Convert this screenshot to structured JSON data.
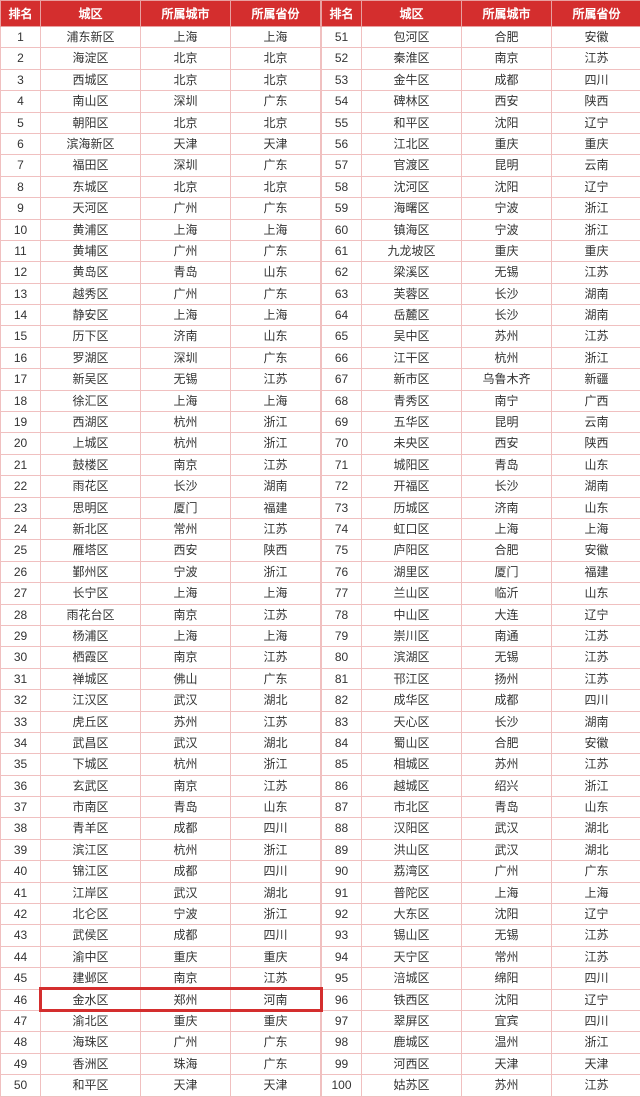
{
  "colors": {
    "header_bg": "#d42e2e",
    "header_text": "#ffffff",
    "border": "#f0c0c0",
    "highlight_border": "#d42e2e",
    "cell_text": "#333333"
  },
  "headers": {
    "rank": "排名",
    "district": "城区",
    "city": "所属城市",
    "province": "所属省份"
  },
  "highlight_row_index": 45,
  "rows_left": [
    {
      "rank": "1",
      "district": "浦东新区",
      "city": "上海",
      "province": "上海"
    },
    {
      "rank": "2",
      "district": "海淀区",
      "city": "北京",
      "province": "北京"
    },
    {
      "rank": "3",
      "district": "西城区",
      "city": "北京",
      "province": "北京"
    },
    {
      "rank": "4",
      "district": "南山区",
      "city": "深圳",
      "province": "广东"
    },
    {
      "rank": "5",
      "district": "朝阳区",
      "city": "北京",
      "province": "北京"
    },
    {
      "rank": "6",
      "district": "滨海新区",
      "city": "天津",
      "province": "天津"
    },
    {
      "rank": "7",
      "district": "福田区",
      "city": "深圳",
      "province": "广东"
    },
    {
      "rank": "8",
      "district": "东城区",
      "city": "北京",
      "province": "北京"
    },
    {
      "rank": "9",
      "district": "天河区",
      "city": "广州",
      "province": "广东"
    },
    {
      "rank": "10",
      "district": "黄浦区",
      "city": "上海",
      "province": "上海"
    },
    {
      "rank": "11",
      "district": "黄埔区",
      "city": "广州",
      "province": "广东"
    },
    {
      "rank": "12",
      "district": "黄岛区",
      "city": "青岛",
      "province": "山东"
    },
    {
      "rank": "13",
      "district": "越秀区",
      "city": "广州",
      "province": "广东"
    },
    {
      "rank": "14",
      "district": "静安区",
      "city": "上海",
      "province": "上海"
    },
    {
      "rank": "15",
      "district": "历下区",
      "city": "济南",
      "province": "山东"
    },
    {
      "rank": "16",
      "district": "罗湖区",
      "city": "深圳",
      "province": "广东"
    },
    {
      "rank": "17",
      "district": "新吴区",
      "city": "无锡",
      "province": "江苏"
    },
    {
      "rank": "18",
      "district": "徐汇区",
      "city": "上海",
      "province": "上海"
    },
    {
      "rank": "19",
      "district": "西湖区",
      "city": "杭州",
      "province": "浙江"
    },
    {
      "rank": "20",
      "district": "上城区",
      "city": "杭州",
      "province": "浙江"
    },
    {
      "rank": "21",
      "district": "鼓楼区",
      "city": "南京",
      "province": "江苏"
    },
    {
      "rank": "22",
      "district": "雨花区",
      "city": "长沙",
      "province": "湖南"
    },
    {
      "rank": "23",
      "district": "思明区",
      "city": "厦门",
      "province": "福建"
    },
    {
      "rank": "24",
      "district": "新北区",
      "city": "常州",
      "province": "江苏"
    },
    {
      "rank": "25",
      "district": "雁塔区",
      "city": "西安",
      "province": "陕西"
    },
    {
      "rank": "26",
      "district": "鄞州区",
      "city": "宁波",
      "province": "浙江"
    },
    {
      "rank": "27",
      "district": "长宁区",
      "city": "上海",
      "province": "上海"
    },
    {
      "rank": "28",
      "district": "雨花台区",
      "city": "南京",
      "province": "江苏"
    },
    {
      "rank": "29",
      "district": "杨浦区",
      "city": "上海",
      "province": "上海"
    },
    {
      "rank": "30",
      "district": "栖霞区",
      "city": "南京",
      "province": "江苏"
    },
    {
      "rank": "31",
      "district": "禅城区",
      "city": "佛山",
      "province": "广东"
    },
    {
      "rank": "32",
      "district": "江汉区",
      "city": "武汉",
      "province": "湖北"
    },
    {
      "rank": "33",
      "district": "虎丘区",
      "city": "苏州",
      "province": "江苏"
    },
    {
      "rank": "34",
      "district": "武昌区",
      "city": "武汉",
      "province": "湖北"
    },
    {
      "rank": "35",
      "district": "下城区",
      "city": "杭州",
      "province": "浙江"
    },
    {
      "rank": "36",
      "district": "玄武区",
      "city": "南京",
      "province": "江苏"
    },
    {
      "rank": "37",
      "district": "市南区",
      "city": "青岛",
      "province": "山东"
    },
    {
      "rank": "38",
      "district": "青羊区",
      "city": "成都",
      "province": "四川"
    },
    {
      "rank": "39",
      "district": "滨江区",
      "city": "杭州",
      "province": "浙江"
    },
    {
      "rank": "40",
      "district": "锦江区",
      "city": "成都",
      "province": "四川"
    },
    {
      "rank": "41",
      "district": "江岸区",
      "city": "武汉",
      "province": "湖北"
    },
    {
      "rank": "42",
      "district": "北仑区",
      "city": "宁波",
      "province": "浙江"
    },
    {
      "rank": "43",
      "district": "武侯区",
      "city": "成都",
      "province": "四川"
    },
    {
      "rank": "44",
      "district": "渝中区",
      "city": "重庆",
      "province": "重庆"
    },
    {
      "rank": "45",
      "district": "建邺区",
      "city": "南京",
      "province": "江苏"
    },
    {
      "rank": "46",
      "district": "金水区",
      "city": "郑州",
      "province": "河南"
    },
    {
      "rank": "47",
      "district": "渝北区",
      "city": "重庆",
      "province": "重庆"
    },
    {
      "rank": "48",
      "district": "海珠区",
      "city": "广州",
      "province": "广东"
    },
    {
      "rank": "49",
      "district": "香洲区",
      "city": "珠海",
      "province": "广东"
    },
    {
      "rank": "50",
      "district": "和平区",
      "city": "天津",
      "province": "天津"
    }
  ],
  "rows_right": [
    {
      "rank": "51",
      "district": "包河区",
      "city": "合肥",
      "province": "安徽"
    },
    {
      "rank": "52",
      "district": "秦淮区",
      "city": "南京",
      "province": "江苏"
    },
    {
      "rank": "53",
      "district": "金牛区",
      "city": "成都",
      "province": "四川"
    },
    {
      "rank": "54",
      "district": "碑林区",
      "city": "西安",
      "province": "陕西"
    },
    {
      "rank": "55",
      "district": "和平区",
      "city": "沈阳",
      "province": "辽宁"
    },
    {
      "rank": "56",
      "district": "江北区",
      "city": "重庆",
      "province": "重庆"
    },
    {
      "rank": "57",
      "district": "官渡区",
      "city": "昆明",
      "province": "云南"
    },
    {
      "rank": "58",
      "district": "沈河区",
      "city": "沈阳",
      "province": "辽宁"
    },
    {
      "rank": "59",
      "district": "海曙区",
      "city": "宁波",
      "province": "浙江"
    },
    {
      "rank": "60",
      "district": "镇海区",
      "city": "宁波",
      "province": "浙江"
    },
    {
      "rank": "61",
      "district": "九龙坡区",
      "city": "重庆",
      "province": "重庆"
    },
    {
      "rank": "62",
      "district": "梁溪区",
      "city": "无锡",
      "province": "江苏"
    },
    {
      "rank": "63",
      "district": "芙蓉区",
      "city": "长沙",
      "province": "湖南"
    },
    {
      "rank": "64",
      "district": "岳麓区",
      "city": "长沙",
      "province": "湖南"
    },
    {
      "rank": "65",
      "district": "吴中区",
      "city": "苏州",
      "province": "江苏"
    },
    {
      "rank": "66",
      "district": "江干区",
      "city": "杭州",
      "province": "浙江"
    },
    {
      "rank": "67",
      "district": "新市区",
      "city": "乌鲁木齐",
      "province": "新疆"
    },
    {
      "rank": "68",
      "district": "青秀区",
      "city": "南宁",
      "province": "广西"
    },
    {
      "rank": "69",
      "district": "五华区",
      "city": "昆明",
      "province": "云南"
    },
    {
      "rank": "70",
      "district": "未央区",
      "city": "西安",
      "province": "陕西"
    },
    {
      "rank": "71",
      "district": "城阳区",
      "city": "青岛",
      "province": "山东"
    },
    {
      "rank": "72",
      "district": "开福区",
      "city": "长沙",
      "province": "湖南"
    },
    {
      "rank": "73",
      "district": "历城区",
      "city": "济南",
      "province": "山东"
    },
    {
      "rank": "74",
      "district": "虹口区",
      "city": "上海",
      "province": "上海"
    },
    {
      "rank": "75",
      "district": "庐阳区",
      "city": "合肥",
      "province": "安徽"
    },
    {
      "rank": "76",
      "district": "湖里区",
      "city": "厦门",
      "province": "福建"
    },
    {
      "rank": "77",
      "district": "兰山区",
      "city": "临沂",
      "province": "山东"
    },
    {
      "rank": "78",
      "district": "中山区",
      "city": "大连",
      "province": "辽宁"
    },
    {
      "rank": "79",
      "district": "崇川区",
      "city": "南通",
      "province": "江苏"
    },
    {
      "rank": "80",
      "district": "滨湖区",
      "city": "无锡",
      "province": "江苏"
    },
    {
      "rank": "81",
      "district": "邗江区",
      "city": "扬州",
      "province": "江苏"
    },
    {
      "rank": "82",
      "district": "成华区",
      "city": "成都",
      "province": "四川"
    },
    {
      "rank": "83",
      "district": "天心区",
      "city": "长沙",
      "province": "湖南"
    },
    {
      "rank": "84",
      "district": "蜀山区",
      "city": "合肥",
      "province": "安徽"
    },
    {
      "rank": "85",
      "district": "相城区",
      "city": "苏州",
      "province": "江苏"
    },
    {
      "rank": "86",
      "district": "越城区",
      "city": "绍兴",
      "province": "浙江"
    },
    {
      "rank": "87",
      "district": "市北区",
      "city": "青岛",
      "province": "山东"
    },
    {
      "rank": "88",
      "district": "汉阳区",
      "city": "武汉",
      "province": "湖北"
    },
    {
      "rank": "89",
      "district": "洪山区",
      "city": "武汉",
      "province": "湖北"
    },
    {
      "rank": "90",
      "district": "荔湾区",
      "city": "广州",
      "province": "广东"
    },
    {
      "rank": "91",
      "district": "普陀区",
      "city": "上海",
      "province": "上海"
    },
    {
      "rank": "92",
      "district": "大东区",
      "city": "沈阳",
      "province": "辽宁"
    },
    {
      "rank": "93",
      "district": "锡山区",
      "city": "无锡",
      "province": "江苏"
    },
    {
      "rank": "94",
      "district": "天宁区",
      "city": "常州",
      "province": "江苏"
    },
    {
      "rank": "95",
      "district": "涪城区",
      "city": "绵阳",
      "province": "四川"
    },
    {
      "rank": "96",
      "district": "铁西区",
      "city": "沈阳",
      "province": "辽宁"
    },
    {
      "rank": "97",
      "district": "翠屏区",
      "city": "宜宾",
      "province": "四川"
    },
    {
      "rank": "98",
      "district": "鹿城区",
      "city": "温州",
      "province": "浙江"
    },
    {
      "rank": "99",
      "district": "河西区",
      "city": "天津",
      "province": "天津"
    },
    {
      "rank": "100",
      "district": "姑苏区",
      "city": "苏州",
      "province": "江苏"
    }
  ]
}
